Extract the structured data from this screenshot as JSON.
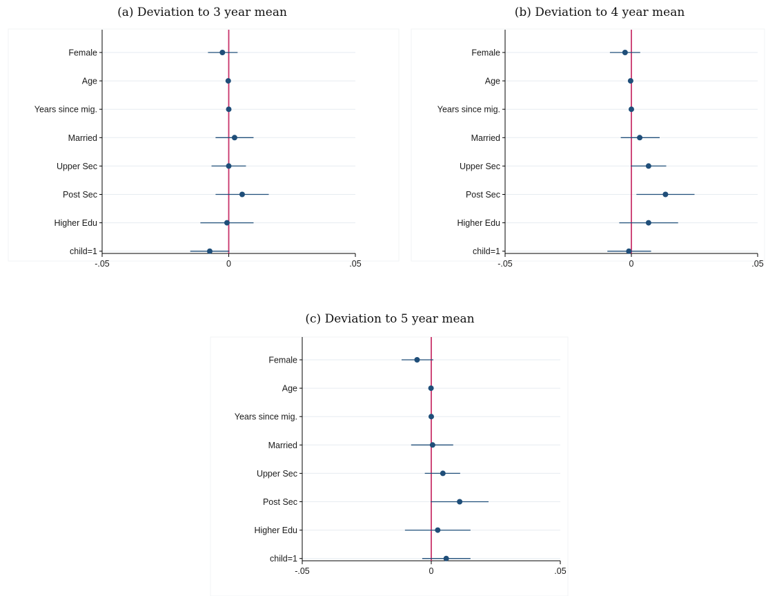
{
  "colors": {
    "point": "#1f4e79",
    "ci_line": "#1f4e79",
    "zero_line": "#c8336a",
    "grid": "#e6ebf0",
    "axis": "#000000"
  },
  "chart_data": [
    {
      "type": "scatter",
      "subtype": "coefficient-plot",
      "title": "(a) Deviation to 3 year mean",
      "categories": [
        "Female",
        "Age",
        "Years since mig.",
        "Married",
        "Upper Sec",
        "Post Sec",
        "Higher Edu",
        "child=1"
      ],
      "estimates": [
        -0.0025,
        -0.0002,
        0.0,
        0.0023,
        0.0,
        0.0053,
        -0.0007,
        -0.0075
      ],
      "ci_low": [
        -0.0082,
        -0.0004,
        -0.0002,
        -0.0052,
        -0.0068,
        -0.0052,
        -0.0112,
        -0.0152
      ],
      "ci_high": [
        0.0035,
        0.0001,
        0.0002,
        0.0098,
        0.0068,
        0.0158,
        0.0098,
        0.0002
      ],
      "xlim": [
        -0.05,
        0.05
      ],
      "xticks": [
        -0.05,
        0,
        0.05
      ],
      "xtick_labels": [
        "-.05",
        "0",
        ".05"
      ],
      "reference_line": 0,
      "grid": true
    },
    {
      "type": "scatter",
      "subtype": "coefficient-plot",
      "title": "(b) Deviation to 4 year mean",
      "categories": [
        "Female",
        "Age",
        "Years since mig.",
        "Married",
        "Upper Sec",
        "Post Sec",
        "Higher Edu",
        "child=1"
      ],
      "estimates": [
        -0.0025,
        -0.0003,
        0.0,
        0.0033,
        0.0068,
        0.0135,
        0.0068,
        -0.001
      ],
      "ci_low": [
        -0.0085,
        -0.0005,
        -0.0002,
        -0.0042,
        -0.0002,
        0.002,
        -0.0048,
        -0.0095
      ],
      "ci_high": [
        0.0035,
        0.0001,
        0.0002,
        0.0112,
        0.0138,
        0.025,
        0.0185,
        0.0078
      ],
      "xlim": [
        -0.05,
        0.05
      ],
      "xticks": [
        -0.05,
        0,
        0.05
      ],
      "xtick_labels": [
        "-.05",
        "0",
        ".05"
      ],
      "reference_line": 0,
      "grid": true
    },
    {
      "type": "scatter",
      "subtype": "coefficient-plot",
      "title": "(c) Deviation to 5 year mean",
      "categories": [
        "Female",
        "Age",
        "Years since mig.",
        "Married",
        "Upper Sec",
        "Post Sec",
        "Higher Edu",
        "child=1"
      ],
      "estimates": [
        -0.0055,
        -0.0001,
        0.0,
        0.0005,
        0.0045,
        0.011,
        0.0025,
        0.0058
      ],
      "ci_low": [
        -0.0115,
        -0.0003,
        -0.0002,
        -0.0078,
        -0.0025,
        -0.0002,
        -0.0102,
        -0.0035
      ],
      "ci_high": [
        0.0008,
        0.0001,
        0.0002,
        0.0085,
        0.0112,
        0.0222,
        0.0152,
        0.0152
      ],
      "xlim": [
        -0.05,
        0.05
      ],
      "xticks": [
        -0.05,
        0,
        0.05
      ],
      "xtick_labels": [
        "-.05",
        "0",
        ".05"
      ],
      "reference_line": 0,
      "grid": true
    }
  ]
}
